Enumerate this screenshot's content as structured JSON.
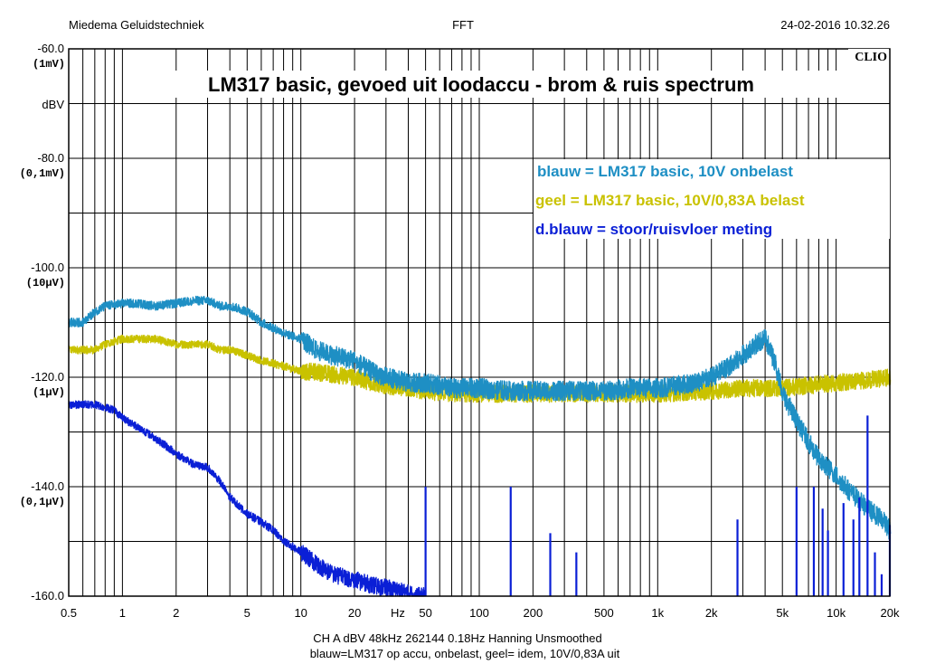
{
  "header": {
    "left": "Miedema Geluidstechniek",
    "center": "FFT",
    "right": "24-02-2016 10.32.26"
  },
  "brand": "CLIO",
  "footer": {
    "line1": "CH A   dBV   48kHz   262144   0.18Hz   Hanning   Unsmoothed",
    "line2": "blauw=LM317 op accu, onbelast, geel= idem, 10V/0,83A uit"
  },
  "colors": {
    "blue": "#1e8fc4",
    "yellow": "#c9c200",
    "darkblue": "#0a1fd6",
    "grid": "#000000"
  },
  "chart_data": {
    "type": "line",
    "title": "LM317 basic, gevoed uit loodaccu  -  brom & ruis spectrum",
    "xscale": "log",
    "xlim": [
      0.5,
      20000
    ],
    "ylim": [
      -160,
      -60
    ],
    "ylabel": "dBV",
    "xunit_label": "Hz",
    "grid": true,
    "x_ticks": [
      {
        "v": 0.5,
        "label": "0.5"
      },
      {
        "v": 1,
        "label": "1"
      },
      {
        "v": 2,
        "label": "2"
      },
      {
        "v": 5,
        "label": "5"
      },
      {
        "v": 10,
        "label": "10"
      },
      {
        "v": 20,
        "label": "20"
      },
      {
        "v": 50,
        "label": "50"
      },
      {
        "v": 100,
        "label": "100"
      },
      {
        "v": 200,
        "label": "200"
      },
      {
        "v": 500,
        "label": "500"
      },
      {
        "v": 1000,
        "label": "1k"
      },
      {
        "v": 2000,
        "label": "2k"
      },
      {
        "v": 5000,
        "label": "5k"
      },
      {
        "v": 10000,
        "label": "10k"
      },
      {
        "v": 20000,
        "label": "20k"
      }
    ],
    "y_ticks": [
      {
        "v": -60,
        "label": "-60.0",
        "sub": "(1mV)"
      },
      {
        "v": -80,
        "label": "-80.0",
        "sub": "(0,1mV)"
      },
      {
        "v": -100,
        "label": "-100.0",
        "sub": "(10µV)"
      },
      {
        "v": -120,
        "label": "-120.0",
        "sub": "(1µV)"
      },
      {
        "v": -140,
        "label": "-140.0",
        "sub": "(0,1µV)"
      },
      {
        "v": -160,
        "label": "-160.0",
        "sub": ""
      }
    ],
    "legend": [
      {
        "text": "blauw = LM317 basic, 10V onbelast",
        "color": "#1e8fc4"
      },
      {
        "text": "geel = LM317 basic, 10V/0,83A belast",
        "color": "#c9c200"
      },
      {
        "text": "d.blauw = stoor/ruisvloer meting",
        "color": "#0a1fd6"
      }
    ],
    "series": [
      {
        "key": "blauw",
        "color": "#1e8fc4",
        "x": [
          0.5,
          0.6,
          0.7,
          0.8,
          1,
          1.2,
          1.5,
          2,
          2.5,
          3,
          3.5,
          4,
          5,
          6,
          7,
          8,
          10,
          12,
          15,
          20,
          25,
          30,
          40,
          50,
          70,
          100,
          150,
          200,
          300,
          500,
          700,
          1000,
          1300,
          1600,
          2000,
          2500,
          3000,
          3500,
          4000,
          4500,
          5000,
          6000,
          7000,
          8000,
          10000,
          12000,
          15000,
          18000,
          20000
        ],
        "y": [
          -110,
          -110,
          -108,
          -107,
          -106.5,
          -106.5,
          -107,
          -106.5,
          -106,
          -106,
          -107,
          -107,
          -108,
          -110,
          -111,
          -112,
          -113,
          -115,
          -116,
          -117,
          -119,
          -120,
          -121,
          -121,
          -122,
          -122,
          -122.5,
          -122.5,
          -122.5,
          -122.5,
          -122,
          -122,
          -121.5,
          -121,
          -120,
          -118,
          -116,
          -114,
          -113,
          -117,
          -123,
          -128,
          -132,
          -135,
          -138,
          -141,
          -144,
          -146,
          -148
        ],
        "noise": 1.8
      },
      {
        "key": "geel",
        "color": "#c9c200",
        "x": [
          0.5,
          0.6,
          0.7,
          0.8,
          1,
          1.2,
          1.5,
          2,
          2.5,
          3,
          3.5,
          4,
          5,
          6,
          7,
          8,
          10,
          12,
          15,
          20,
          25,
          30,
          40,
          50,
          70,
          100,
          150,
          200,
          300,
          500,
          700,
          1000,
          2000,
          3000,
          5000,
          7000,
          10000,
          15000,
          20000
        ],
        "y": [
          -115,
          -115,
          -115,
          -114,
          -113,
          -113,
          -113,
          -114,
          -114,
          -114,
          -115,
          -115,
          -116,
          -117,
          -117.5,
          -118,
          -119,
          -119,
          -119.5,
          -120,
          -121,
          -121.5,
          -122,
          -122.5,
          -123,
          -123,
          -123,
          -123,
          -123,
          -123,
          -123,
          -123,
          -122.5,
          -122,
          -122,
          -121.5,
          -121,
          -120.5,
          -120
        ],
        "noise": 1.6
      },
      {
        "key": "d.blauw",
        "color": "#0a1fd6",
        "x": [
          0.5,
          0.7,
          0.9,
          1,
          1.2,
          1.5,
          2,
          2.5,
          3,
          3.5,
          4,
          5,
          6,
          7,
          8,
          10,
          12,
          15,
          20,
          25,
          30,
          35,
          40,
          45,
          50
        ],
        "y": [
          -125,
          -125,
          -126,
          -127.5,
          -129,
          -131,
          -134,
          -136,
          -136.5,
          -139,
          -142,
          -145,
          -146.5,
          -148,
          -150,
          -152,
          -154,
          -156,
          -157,
          -158,
          -158.5,
          -159,
          -159.5,
          -160,
          -160
        ],
        "noise": 1.6,
        "spikes": [
          {
            "f": 50,
            "db": -140
          },
          {
            "f": 150,
            "db": -140
          },
          {
            "f": 250,
            "db": -148.5
          },
          {
            "f": 350,
            "db": -152
          },
          {
            "f": 2800,
            "db": -146
          },
          {
            "f": 6000,
            "db": -140
          },
          {
            "f": 7500,
            "db": -140
          },
          {
            "f": 8400,
            "db": -144
          },
          {
            "f": 9000,
            "db": -148
          },
          {
            "f": 11000,
            "db": -143
          },
          {
            "f": 12500,
            "db": -146
          },
          {
            "f": 13500,
            "db": -142
          },
          {
            "f": 15000,
            "db": -127
          },
          {
            "f": 16500,
            "db": -152
          },
          {
            "f": 18000,
            "db": -156
          },
          {
            "f": 20000,
            "db": -147
          }
        ]
      }
    ]
  }
}
